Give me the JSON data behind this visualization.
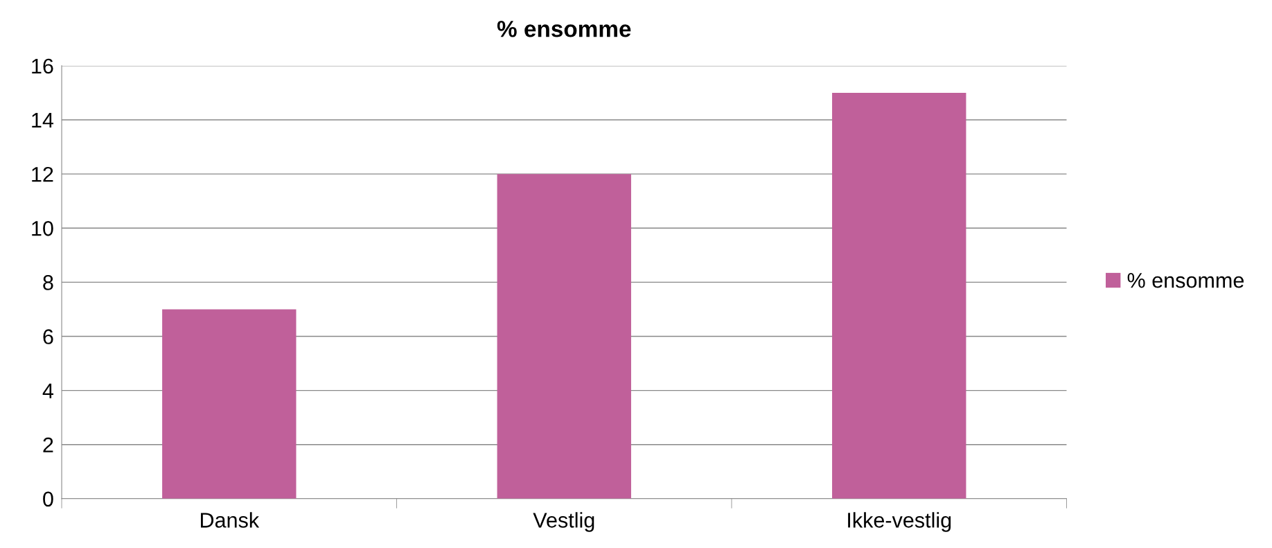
{
  "chart_data": {
    "type": "bar",
    "title": "% ensomme",
    "categories": [
      "Dansk",
      "Vestlig",
      "Ikke-vestlig"
    ],
    "series": [
      {
        "name": "% ensomme",
        "color": "#c0609a",
        "values": [
          7,
          12,
          15
        ]
      }
    ],
    "ylim": [
      0,
      16
    ],
    "yticks": [
      0,
      2,
      4,
      6,
      8,
      10,
      12,
      14,
      16
    ],
    "grid": "y",
    "legend": "right"
  }
}
